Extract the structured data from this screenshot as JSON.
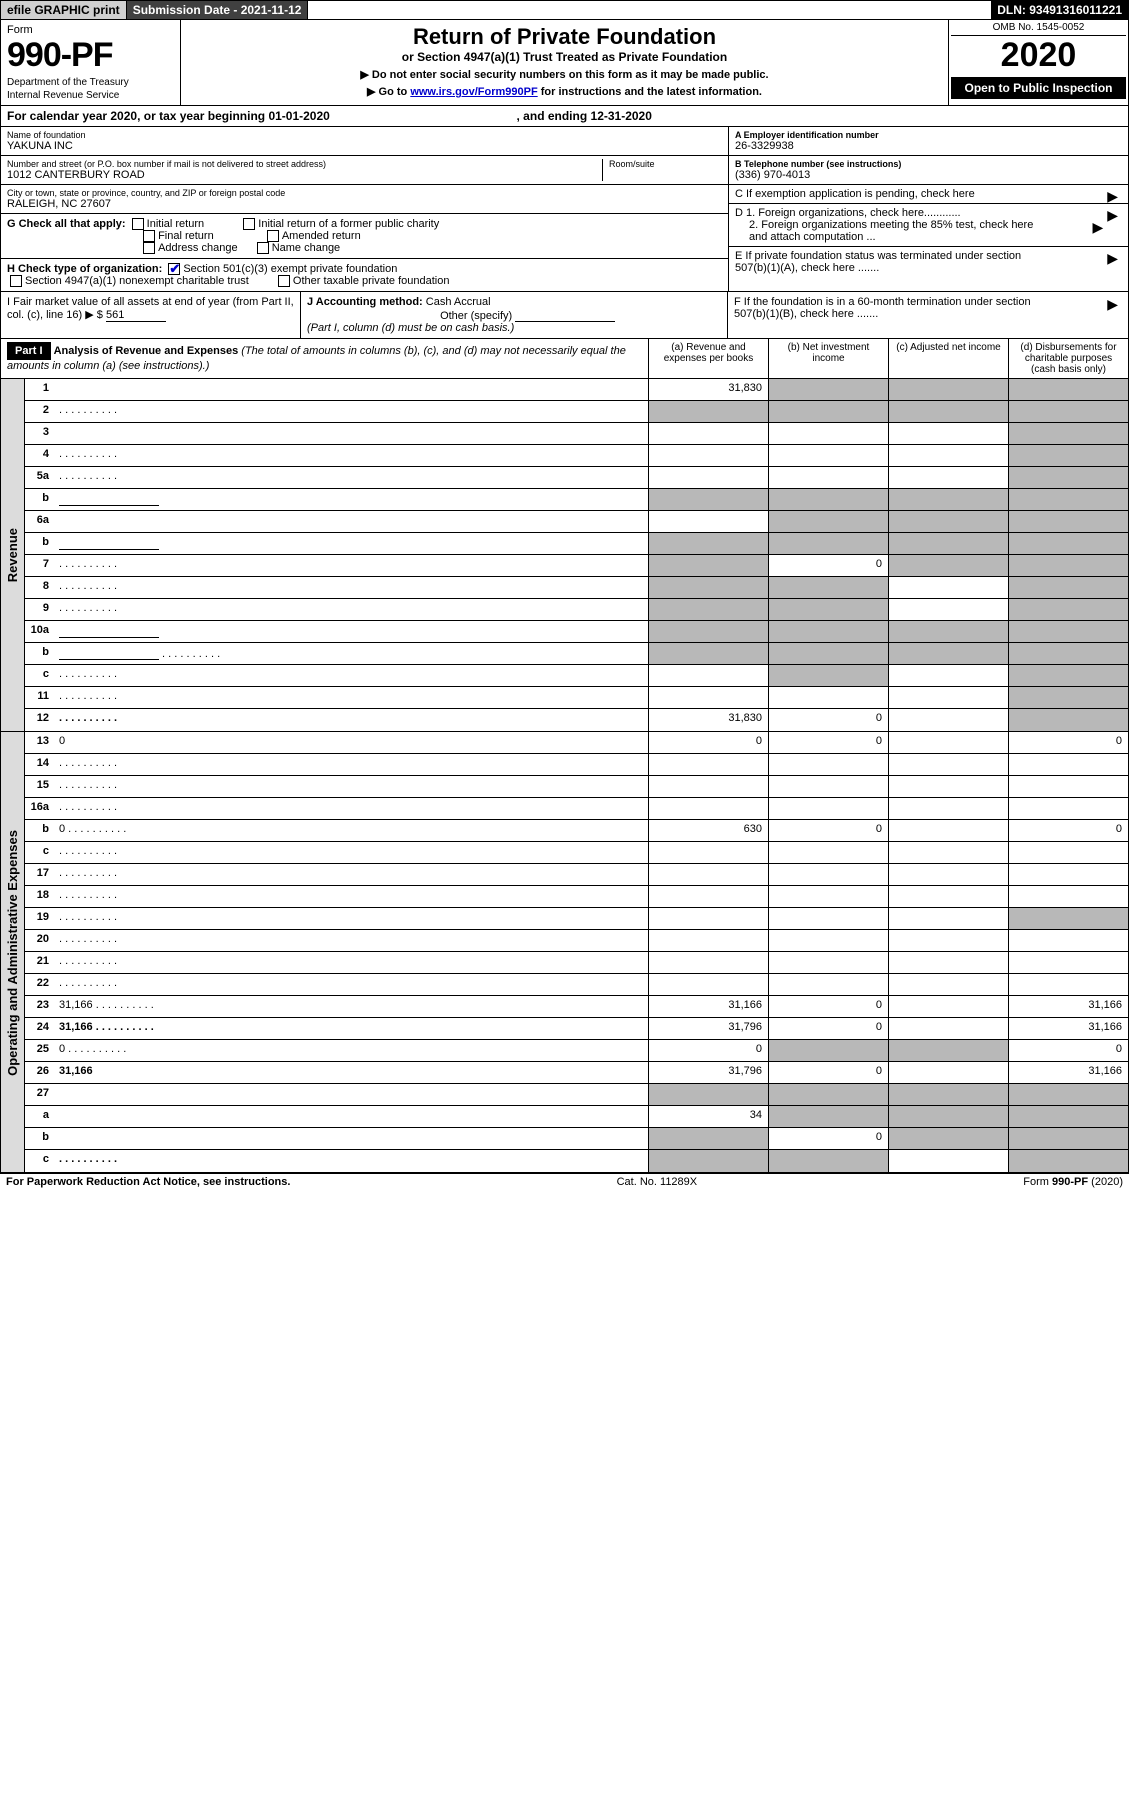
{
  "topbar": {
    "print": "efile GRAPHIC print",
    "submission": "Submission Date - 2021-11-12",
    "dln": "DLN: 93491316011221"
  },
  "header": {
    "form_word": "Form",
    "form_number": "990-PF",
    "dept": "Department of the Treasury",
    "irs": "Internal Revenue Service",
    "title": "Return of Private Foundation",
    "subtitle": "or Section 4947(a)(1) Trust Treated as Private Foundation",
    "note1": "▶ Do not enter social security numbers on this form as it may be made public.",
    "note2_pre": "▶ Go to ",
    "note2_link": "www.irs.gov/Form990PF",
    "note2_post": " for instructions and the latest information.",
    "omb": "OMB No. 1545-0052",
    "year": "2020",
    "open": "Open to Public Inspection"
  },
  "calyear": {
    "text_pre": "For calendar year 2020, or tax year beginning 01-01-2020",
    "text_mid": ", and ending 12-31-2020"
  },
  "info": {
    "name_label": "Name of foundation",
    "name": "YAKUNA INC",
    "addr_label": "Number and street (or P.O. box number if mail is not delivered to street address)",
    "addr": "1012 CANTERBURY ROAD",
    "room_label": "Room/suite",
    "city_label": "City or town, state or province, country, and ZIP or foreign postal code",
    "city": "RALEIGH, NC  27607",
    "ein_label": "A Employer identification number",
    "ein": "26-3329938",
    "tel_label": "B Telephone number (see instructions)",
    "tel": "(336) 970-4013",
    "c_label": "C If exemption application is pending, check here",
    "d1_label": "D 1. Foreign organizations, check here............",
    "d2_label": "2. Foreign organizations meeting the 85% test, check here and attach computation ...",
    "e_label": "E  If private foundation status was terminated under section 507(b)(1)(A), check here .......",
    "f_label": "F  If the foundation is in a 60-month termination under section 507(b)(1)(B), check here .......",
    "g_label": "G Check all that apply:",
    "g_opts": [
      "Initial return",
      "Initial return of a former public charity",
      "Final return",
      "Amended return",
      "Address change",
      "Name change"
    ],
    "h_label": "H Check type of organization:",
    "h_opts": [
      "Section 501(c)(3) exempt private foundation",
      "Section 4947(a)(1) nonexempt charitable trust",
      "Other taxable private foundation"
    ],
    "i_label": "I Fair market value of all assets at end of year (from Part II, col. (c), line 16)",
    "i_value": "561",
    "j_label": "J Accounting method:",
    "j_opts": [
      "Cash",
      "Accrual",
      "Other (specify)"
    ],
    "j_note": "(Part I, column (d) must be on cash basis.)"
  },
  "part1": {
    "part_label": "Part I",
    "title": "Analysis of Revenue and Expenses",
    "subtitle": "(The total of amounts in columns (b), (c), and (d) may not necessarily equal the amounts in column (a) (see instructions).)",
    "col_a": "(a)  Revenue and expenses per books",
    "col_b": "(b)  Net investment income",
    "col_c": "(c)  Adjusted net income",
    "col_d": "(d)  Disbursements for charitable purposes (cash basis only)"
  },
  "sections": {
    "revenue": "Revenue",
    "expenses": "Operating and Administrative Expenses"
  },
  "rows": [
    {
      "n": "1",
      "d": "",
      "a": "31,830",
      "b": "",
      "c": "",
      "sb": true,
      "sc": true,
      "sd": true
    },
    {
      "n": "2",
      "d": "",
      "a": "",
      "b": "",
      "c": "",
      "sa": true,
      "sb": true,
      "sc": true,
      "sd": true,
      "dots": true
    },
    {
      "n": "3",
      "d": "",
      "a": "",
      "b": "",
      "c": "",
      "sd": true
    },
    {
      "n": "4",
      "d": "",
      "a": "",
      "b": "",
      "c": "",
      "sd": true,
      "dots": true
    },
    {
      "n": "5a",
      "d": "",
      "a": "",
      "b": "",
      "c": "",
      "sd": true,
      "dots": true
    },
    {
      "n": "b",
      "d": "",
      "a": "",
      "b": "",
      "c": "",
      "sa": true,
      "sb": true,
      "sc": true,
      "sd": true,
      "inline": true
    },
    {
      "n": "6a",
      "d": "",
      "a": "",
      "b": "",
      "c": "",
      "sb": true,
      "sc": true,
      "sd": true
    },
    {
      "n": "b",
      "d": "",
      "a": "",
      "b": "",
      "c": "",
      "sa": true,
      "sb": true,
      "sc": true,
      "sd": true,
      "inline": true
    },
    {
      "n": "7",
      "d": "",
      "a": "",
      "b": "0",
      "c": "",
      "sa": true,
      "sc": true,
      "sd": true,
      "dots": true
    },
    {
      "n": "8",
      "d": "",
      "a": "",
      "b": "",
      "c": "",
      "sa": true,
      "sb": true,
      "sd": true,
      "dots": true
    },
    {
      "n": "9",
      "d": "",
      "a": "",
      "b": "",
      "c": "",
      "sa": true,
      "sb": true,
      "sd": true,
      "dots": true
    },
    {
      "n": "10a",
      "d": "",
      "a": "",
      "b": "",
      "c": "",
      "sa": true,
      "sb": true,
      "sc": true,
      "sd": true,
      "inline": true
    },
    {
      "n": "b",
      "d": "",
      "a": "",
      "b": "",
      "c": "",
      "sa": true,
      "sb": true,
      "sc": true,
      "sd": true,
      "inline": true,
      "dots": true
    },
    {
      "n": "c",
      "d": "",
      "a": "",
      "b": "",
      "c": "",
      "sb": true,
      "sd": true,
      "dots": true
    },
    {
      "n": "11",
      "d": "",
      "a": "",
      "b": "",
      "c": "",
      "sd": true,
      "dots": true
    },
    {
      "n": "12",
      "d": "",
      "a": "31,830",
      "b": "0",
      "c": "",
      "sd": true,
      "bold": true,
      "dots": true
    }
  ],
  "exp_rows": [
    {
      "n": "13",
      "d": "0",
      "a": "0",
      "b": "0",
      "c": ""
    },
    {
      "n": "14",
      "d": "",
      "a": "",
      "b": "",
      "c": "",
      "dots": true
    },
    {
      "n": "15",
      "d": "",
      "a": "",
      "b": "",
      "c": "",
      "dots": true
    },
    {
      "n": "16a",
      "d": "",
      "a": "",
      "b": "",
      "c": "",
      "dots": true
    },
    {
      "n": "b",
      "d": "0",
      "a": "630",
      "b": "0",
      "c": "",
      "dots": true
    },
    {
      "n": "c",
      "d": "",
      "a": "",
      "b": "",
      "c": "",
      "dots": true
    },
    {
      "n": "17",
      "d": "",
      "a": "",
      "b": "",
      "c": "",
      "dots": true
    },
    {
      "n": "18",
      "d": "",
      "a": "",
      "b": "",
      "c": "",
      "dots": true
    },
    {
      "n": "19",
      "d": "",
      "a": "",
      "b": "",
      "c": "",
      "sd": true,
      "dots": true
    },
    {
      "n": "20",
      "d": "",
      "a": "",
      "b": "",
      "c": "",
      "dots": true
    },
    {
      "n": "21",
      "d": "",
      "a": "",
      "b": "",
      "c": "",
      "dots": true
    },
    {
      "n": "22",
      "d": "",
      "a": "",
      "b": "",
      "c": "",
      "dots": true
    },
    {
      "n": "23",
      "d": "31,166",
      "a": "31,166",
      "b": "0",
      "c": "",
      "dots": true
    },
    {
      "n": "24",
      "d": "31,166",
      "a": "31,796",
      "b": "0",
      "c": "",
      "bold": true,
      "dots": true
    },
    {
      "n": "25",
      "d": "0",
      "a": "0",
      "b": "",
      "c": "",
      "sb": true,
      "sc": true,
      "dots": true
    },
    {
      "n": "26",
      "d": "31,166",
      "a": "31,796",
      "b": "0",
      "c": "",
      "bold": true
    },
    {
      "n": "27",
      "d": "",
      "a": "",
      "b": "",
      "c": "",
      "sa": true,
      "sb": true,
      "sc": true,
      "sd": true
    },
    {
      "n": "a",
      "d": "",
      "a": "34",
      "b": "",
      "c": "",
      "sb": true,
      "sc": true,
      "sd": true,
      "bold": true
    },
    {
      "n": "b",
      "d": "",
      "a": "",
      "b": "0",
      "c": "",
      "sa": true,
      "sc": true,
      "sd": true,
      "bold": true
    },
    {
      "n": "c",
      "d": "",
      "a": "",
      "b": "",
      "c": "",
      "sa": true,
      "sb": true,
      "sd": true,
      "bold": true,
      "dots": true
    }
  ],
  "footer": {
    "left": "For Paperwork Reduction Act Notice, see instructions.",
    "center": "Cat. No. 11289X",
    "right": "Form 990-PF (2020)"
  },
  "colors": {
    "accent": "#0000cc",
    "shaded": "#b8b8b8",
    "gray_bg": "#dcdcdc"
  }
}
